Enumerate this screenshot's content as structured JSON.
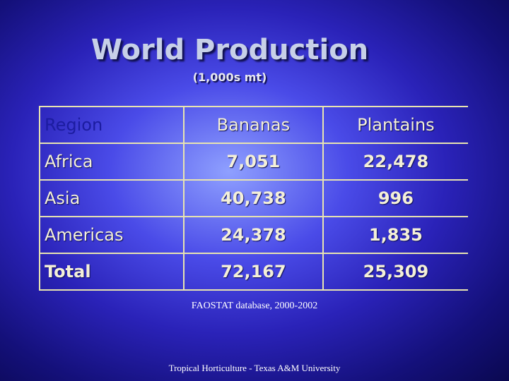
{
  "header": {
    "title": "World Production",
    "subtitle": "(1,000s mt)"
  },
  "table": {
    "columns": [
      "Region",
      "Bananas",
      "Plantains"
    ],
    "rows": [
      [
        "Africa",
        "7,051",
        "22,478"
      ],
      [
        "Asia",
        "40,738",
        "996"
      ],
      [
        "Americas",
        "24,378",
        "1,835"
      ],
      [
        "Total",
        "72,167",
        "25,309"
      ]
    ]
  },
  "source": "FAOSTAT database, 2000-2002",
  "footer": "Tropical Horticulture - Texas A&M University"
}
